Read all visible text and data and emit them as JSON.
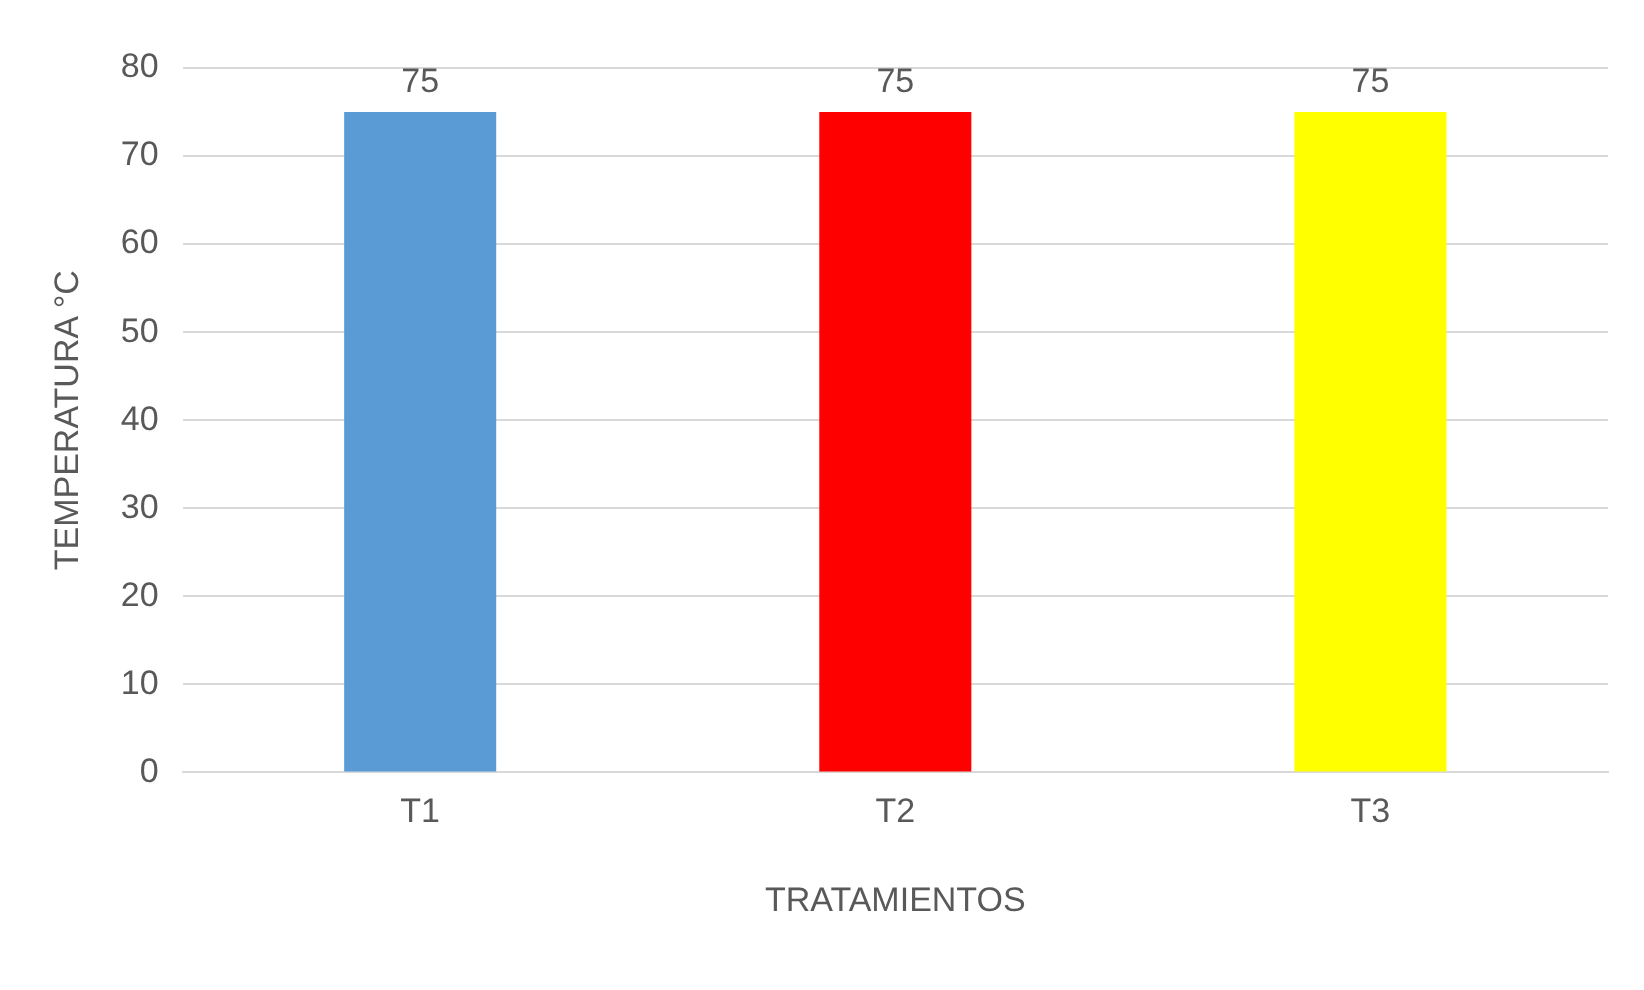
{
  "chart_data": {
    "type": "bar",
    "xlabel": "TRATAMIENTOS",
    "ylabel": "TEMPERATURA °C",
    "categories": [
      "T1",
      "T2",
      "T3"
    ],
    "values": [
      75,
      75,
      75
    ],
    "colors": [
      "#5b9bd5",
      "#ff0000",
      "#ffff00"
    ],
    "ylim": [
      0,
      80
    ],
    "yticks": [
      0,
      10,
      20,
      30,
      40,
      50,
      60,
      70,
      80
    ],
    "grid": "y",
    "legend": false,
    "data_labels": true
  }
}
